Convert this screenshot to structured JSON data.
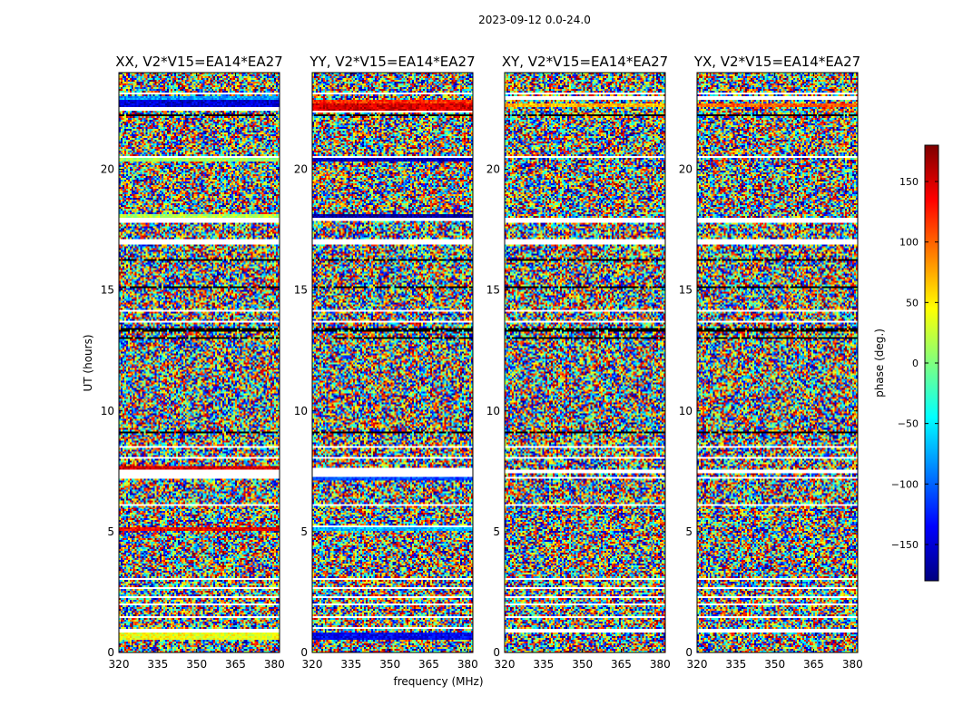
{
  "chart_data": {
    "type": "heatmap",
    "suptitle": "2023-09-12 0.0-24.0",
    "xlabel": "frequency (MHz)",
    "ylabel": "UT (hours)",
    "xlim": [
      320,
      382
    ],
    "ylim": [
      0,
      24
    ],
    "xticks": [
      320,
      335,
      350,
      365,
      380
    ],
    "yticks": [
      0,
      5,
      10,
      15,
      20
    ],
    "panels": [
      {
        "title": "XX, V2*V15=EA14*EA27",
        "blank_bands_hours": [
          [
            0.85,
            0.95
          ],
          [
            1.45,
            1.5
          ],
          [
            1.95,
            2.0
          ],
          [
            2.25,
            2.3
          ],
          [
            2.65,
            2.7
          ],
          [
            3.0,
            3.05
          ],
          [
            3.35,
            3.4
          ],
          [
            5.15,
            5.2
          ],
          [
            5.6,
            5.65
          ],
          [
            6.1,
            6.15
          ],
          [
            7.2,
            7.6
          ],
          [
            8.05,
            8.1
          ],
          [
            8.5,
            8.55
          ],
          [
            13.65,
            13.7
          ],
          [
            14.1,
            14.15
          ],
          [
            16.9,
            17.1
          ],
          [
            17.45,
            17.5
          ],
          [
            17.8,
            18.0
          ],
          [
            20.45,
            20.55
          ],
          [
            22.45,
            22.55
          ],
          [
            23.1,
            23.2
          ]
        ],
        "dark_bands_hours": [
          [
            8.75,
            8.8
          ],
          [
            9.1,
            9.15
          ],
          [
            9.5,
            9.55
          ],
          [
            12.95,
            13.05
          ],
          [
            13.3,
            13.45
          ],
          [
            15.1,
            15.15
          ],
          [
            16.2,
            16.25
          ],
          [
            21.5,
            21.55
          ],
          [
            22.2,
            22.25
          ]
        ],
        "coherent_bands": [
          {
            "hours": [
              0.5,
              0.8
            ],
            "phase_deg": 40
          },
          {
            "hours": [
              5.0,
              5.15
            ],
            "phase_deg": 140
          },
          {
            "hours": [
              7.6,
              7.75
            ],
            "phase_deg": 150
          },
          {
            "hours": [
              17.95,
              18.15
            ],
            "phase_deg": 20
          },
          {
            "hours": [
              20.3,
              20.45
            ],
            "phase_deg": 10
          },
          {
            "hours": [
              22.6,
              22.9
            ],
            "phase_deg": -150
          },
          {
            "hours": [
              22.9,
              23.05
            ],
            "phase_deg": -80
          }
        ]
      },
      {
        "title": "YY, V2*V15=EA14*EA27",
        "blank_bands_hours": [
          [
            0.95,
            1.05
          ],
          [
            1.45,
            1.5
          ],
          [
            1.95,
            2.0
          ],
          [
            2.25,
            2.3
          ],
          [
            2.65,
            2.7
          ],
          [
            3.0,
            3.05
          ],
          [
            3.35,
            3.4
          ],
          [
            5.2,
            5.25
          ],
          [
            5.6,
            5.65
          ],
          [
            6.1,
            6.15
          ],
          [
            7.3,
            7.65
          ],
          [
            8.05,
            8.1
          ],
          [
            8.5,
            8.55
          ],
          [
            13.65,
            13.7
          ],
          [
            14.1,
            14.15
          ],
          [
            16.9,
            17.1
          ],
          [
            17.45,
            17.5
          ],
          [
            17.85,
            18.0
          ],
          [
            20.45,
            20.55
          ],
          [
            22.35,
            22.45
          ],
          [
            23.1,
            23.2
          ]
        ],
        "dark_bands_hours": [
          [
            8.75,
            8.8
          ],
          [
            9.1,
            9.15
          ],
          [
            9.5,
            9.55
          ],
          [
            12.95,
            13.05
          ],
          [
            13.3,
            13.45
          ],
          [
            15.1,
            15.15
          ],
          [
            16.2,
            16.25
          ],
          [
            21.5,
            21.55
          ],
          [
            22.2,
            22.25
          ]
        ],
        "coherent_bands": [
          {
            "hours": [
              0.55,
              0.8
            ],
            "phase_deg": -140
          },
          {
            "hours": [
              5.0,
              5.2
            ],
            "phase_deg": -70
          },
          {
            "hours": [
              7.1,
              7.3
            ],
            "phase_deg": -110
          },
          {
            "hours": [
              18.0,
              18.15
            ],
            "phase_deg": -170
          },
          {
            "hours": [
              20.3,
              20.45
            ],
            "phase_deg": -160
          },
          {
            "hours": [
              22.45,
              22.7
            ],
            "phase_deg": 150
          },
          {
            "hours": [
              22.7,
              22.9
            ],
            "phase_deg": 120
          }
        ]
      },
      {
        "title": "XY, V2*V15=EA14*EA27",
        "blank_bands_hours": [
          [
            0.85,
            0.95
          ],
          [
            1.45,
            1.5
          ],
          [
            1.95,
            2.0
          ],
          [
            2.25,
            2.3
          ],
          [
            2.65,
            2.7
          ],
          [
            3.0,
            3.05
          ],
          [
            3.35,
            3.4
          ],
          [
            5.15,
            5.2
          ],
          [
            5.6,
            5.65
          ],
          [
            6.1,
            6.15
          ],
          [
            7.2,
            7.3
          ],
          [
            7.45,
            7.6
          ],
          [
            8.05,
            8.1
          ],
          [
            8.5,
            8.55
          ],
          [
            13.65,
            13.7
          ],
          [
            14.1,
            14.15
          ],
          [
            16.9,
            17.1
          ],
          [
            17.45,
            17.5
          ],
          [
            17.8,
            18.0
          ],
          [
            20.45,
            20.55
          ],
          [
            22.9,
            23.0
          ],
          [
            23.1,
            23.2
          ]
        ],
        "dark_bands_hours": [
          [
            8.75,
            8.8
          ],
          [
            9.1,
            9.15
          ],
          [
            9.5,
            9.55
          ],
          [
            12.95,
            13.05
          ],
          [
            13.3,
            13.45
          ],
          [
            15.1,
            15.15
          ],
          [
            16.2,
            16.25
          ],
          [
            21.5,
            21.55
          ],
          [
            22.2,
            22.25
          ]
        ],
        "coherent_bands": [
          {
            "hours": [
              22.55,
              22.75
            ],
            "phase_deg": 70
          }
        ]
      },
      {
        "title": "YX, V2*V15=EA14*EA27",
        "blank_bands_hours": [
          [
            0.85,
            0.95
          ],
          [
            1.45,
            1.5
          ],
          [
            1.95,
            2.0
          ],
          [
            2.25,
            2.3
          ],
          [
            2.65,
            2.7
          ],
          [
            3.0,
            3.05
          ],
          [
            3.35,
            3.4
          ],
          [
            5.15,
            5.2
          ],
          [
            5.6,
            5.65
          ],
          [
            6.1,
            6.15
          ],
          [
            7.2,
            7.3
          ],
          [
            7.45,
            7.6
          ],
          [
            8.05,
            8.1
          ],
          [
            8.5,
            8.55
          ],
          [
            13.65,
            13.7
          ],
          [
            14.1,
            14.15
          ],
          [
            16.9,
            17.1
          ],
          [
            17.45,
            17.5
          ],
          [
            17.8,
            18.0
          ],
          [
            20.45,
            20.55
          ],
          [
            22.9,
            23.0
          ],
          [
            23.1,
            23.2
          ]
        ],
        "dark_bands_hours": [
          [
            8.75,
            8.8
          ],
          [
            9.1,
            9.15
          ],
          [
            9.5,
            9.55
          ],
          [
            12.95,
            13.05
          ],
          [
            13.3,
            13.45
          ],
          [
            15.1,
            15.15
          ],
          [
            16.2,
            16.25
          ],
          [
            21.5,
            21.55
          ],
          [
            22.2,
            22.25
          ]
        ],
        "coherent_bands": [
          {
            "hours": [
              22.55,
              22.75
            ],
            "phase_deg": 100
          }
        ]
      }
    ],
    "colorbar": {
      "label": "phase (deg.)",
      "range": [
        -180,
        180
      ],
      "ticks": [
        -150,
        -100,
        -50,
        0,
        50,
        100,
        150
      ],
      "tick_labels": [
        "−150",
        "−100",
        "−50",
        "0",
        "50",
        "100",
        "150"
      ],
      "colormap": "jet",
      "colormap_stops": [
        "#00007f",
        "#0000ff",
        "#007fff",
        "#00ffff",
        "#7fff7f",
        "#ffff00",
        "#ff7f00",
        "#ff0000",
        "#7f0000"
      ]
    }
  }
}
